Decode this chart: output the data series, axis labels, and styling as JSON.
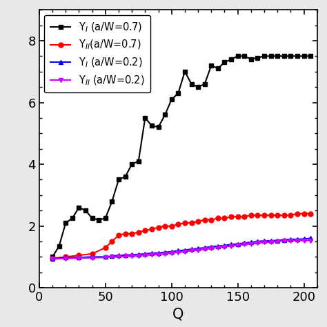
{
  "xlabel": "Q",
  "ylabel": "",
  "xlim": [
    0,
    210
  ],
  "ylim": [
    0,
    9
  ],
  "yticks": [
    0,
    2,
    4,
    6,
    8
  ],
  "xticks": [
    0,
    50,
    100,
    150,
    200
  ],
  "legend_labels": [
    "Y$_I$ (a/W=0.7)",
    "Y$_{II}$(a/W=0.7)",
    "Y$_I$ (a/W=0.2)",
    "Y$_{II}$ (a/W=0.2)"
  ],
  "series1_color": "#000000",
  "series2_color": "#ff0000",
  "series3_color": "#0000ff",
  "series4_color": "#cc00ff",
  "series1_marker": "s",
  "series2_marker": "o",
  "series3_marker": "^",
  "series4_marker": "v",
  "series1_x": [
    10,
    15,
    20,
    25,
    30,
    35,
    40,
    45,
    50,
    55,
    60,
    65,
    70,
    75,
    80,
    85,
    90,
    95,
    100,
    105,
    110,
    115,
    120,
    125,
    130,
    135,
    140,
    145,
    150,
    155,
    160,
    165,
    170,
    175,
    180,
    185,
    190,
    195,
    200,
    205
  ],
  "series1_y": [
    1.0,
    1.35,
    2.1,
    2.25,
    2.6,
    2.5,
    2.25,
    2.2,
    2.25,
    2.8,
    3.5,
    3.6,
    4.0,
    4.1,
    5.5,
    5.25,
    5.2,
    5.6,
    6.1,
    6.3,
    7.0,
    6.6,
    6.5,
    6.6,
    7.2,
    7.1,
    7.3,
    7.4,
    7.5,
    7.5,
    7.4,
    7.45,
    7.5,
    7.5,
    7.5,
    7.5,
    7.5,
    7.5,
    7.5,
    7.5
  ],
  "series2_x": [
    10,
    20,
    30,
    40,
    50,
    55,
    60,
    65,
    70,
    75,
    80,
    85,
    90,
    95,
    100,
    105,
    110,
    115,
    120,
    125,
    130,
    135,
    140,
    145,
    150,
    155,
    160,
    165,
    170,
    175,
    180,
    185,
    190,
    195,
    200,
    205
  ],
  "series2_y": [
    0.95,
    1.0,
    1.05,
    1.1,
    1.3,
    1.5,
    1.7,
    1.75,
    1.75,
    1.8,
    1.85,
    1.9,
    1.95,
    2.0,
    2.0,
    2.05,
    2.1,
    2.1,
    2.15,
    2.2,
    2.2,
    2.25,
    2.25,
    2.3,
    2.3,
    2.3,
    2.35,
    2.35,
    2.35,
    2.35,
    2.35,
    2.35,
    2.35,
    2.4,
    2.4,
    2.4
  ],
  "series3_x": [
    10,
    20,
    30,
    40,
    50,
    55,
    60,
    65,
    70,
    75,
    80,
    85,
    90,
    95,
    100,
    105,
    110,
    115,
    120,
    125,
    130,
    135,
    140,
    145,
    150,
    155,
    160,
    165,
    170,
    175,
    180,
    185,
    190,
    195,
    200,
    205
  ],
  "series3_y": [
    0.95,
    0.98,
    0.98,
    1.0,
    1.0,
    1.02,
    1.05,
    1.05,
    1.07,
    1.08,
    1.1,
    1.12,
    1.13,
    1.15,
    1.17,
    1.2,
    1.22,
    1.25,
    1.27,
    1.3,
    1.33,
    1.35,
    1.37,
    1.4,
    1.42,
    1.45,
    1.47,
    1.5,
    1.52,
    1.52,
    1.53,
    1.55,
    1.57,
    1.57,
    1.58,
    1.6
  ],
  "series4_x": [
    10,
    20,
    30,
    40,
    50,
    55,
    60,
    65,
    70,
    75,
    80,
    85,
    90,
    95,
    100,
    105,
    110,
    115,
    120,
    125,
    130,
    135,
    140,
    145,
    150,
    155,
    160,
    165,
    170,
    175,
    180,
    185,
    190,
    195,
    200,
    205
  ],
  "series4_y": [
    0.93,
    0.95,
    0.96,
    0.97,
    0.98,
    1.0,
    1.0,
    1.02,
    1.03,
    1.04,
    1.05,
    1.07,
    1.08,
    1.1,
    1.12,
    1.15,
    1.17,
    1.2,
    1.22,
    1.25,
    1.28,
    1.3,
    1.33,
    1.35,
    1.38,
    1.4,
    1.42,
    1.45,
    1.47,
    1.48,
    1.5,
    1.52,
    1.52,
    1.53,
    1.53,
    1.53
  ],
  "markersize": 5,
  "linewidth": 1.5,
  "fig_facecolor": "#e8e8e8",
  "plot_facecolor": "#ffffff",
  "legend_fontsize": 10.5,
  "tick_fontsize": 13,
  "label_fontsize": 15
}
